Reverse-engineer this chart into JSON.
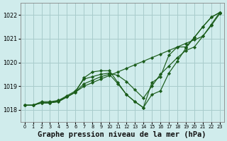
{
  "background_color": "#d0ecec",
  "grid_color": "#a8cccc",
  "line_color": "#1a5c1a",
  "marker_color": "#1a5c1a",
  "title": "Graphe pression niveau de la mer (hPa)",
  "title_fontsize": 7.5,
  "xlim": [
    -0.5,
    23.5
  ],
  "ylim": [
    1017.5,
    1022.5
  ],
  "yticks": [
    1018,
    1019,
    1020,
    1021,
    1022
  ],
  "xticks": [
    0,
    1,
    2,
    3,
    4,
    5,
    6,
    7,
    8,
    9,
    10,
    11,
    12,
    13,
    14,
    15,
    16,
    17,
    18,
    19,
    20,
    21,
    22,
    23
  ],
  "series": [
    [
      1018.2,
      1018.2,
      1018.3,
      1018.3,
      1018.4,
      1018.55,
      1018.75,
      1019.0,
      1019.15,
      1019.3,
      1019.45,
      1019.6,
      1019.75,
      1019.9,
      1020.05,
      1020.2,
      1020.35,
      1020.5,
      1020.65,
      1020.8,
      1020.95,
      1021.1,
      1021.6,
      1022.1
    ],
    [
      1018.2,
      1018.2,
      1018.35,
      1018.35,
      1018.4,
      1018.6,
      1018.8,
      1019.3,
      1019.4,
      1019.5,
      1019.55,
      1019.45,
      1019.2,
      1018.85,
      1018.5,
      1019.0,
      1019.5,
      1019.85,
      1020.2,
      1020.5,
      1020.65,
      1021.1,
      1021.55,
      1022.05
    ],
    [
      1018.2,
      1018.2,
      1018.3,
      1018.3,
      1018.35,
      1018.55,
      1018.75,
      1019.35,
      1019.6,
      1019.65,
      1019.65,
      1019.15,
      1018.65,
      1018.35,
      1018.1,
      1018.65,
      1018.8,
      1019.55,
      1020.05,
      1020.6,
      1021.05,
      1021.5,
      1021.9,
      1022.1
    ],
    [
      1018.2,
      1018.2,
      1018.3,
      1018.3,
      1018.35,
      1018.55,
      1018.75,
      1019.1,
      1019.25,
      1019.4,
      1019.5,
      1019.1,
      1018.65,
      1018.35,
      1018.1,
      1019.15,
      1019.4,
      1020.3,
      1020.65,
      1020.65,
      1021.05,
      1021.5,
      1021.9,
      1022.1
    ]
  ]
}
